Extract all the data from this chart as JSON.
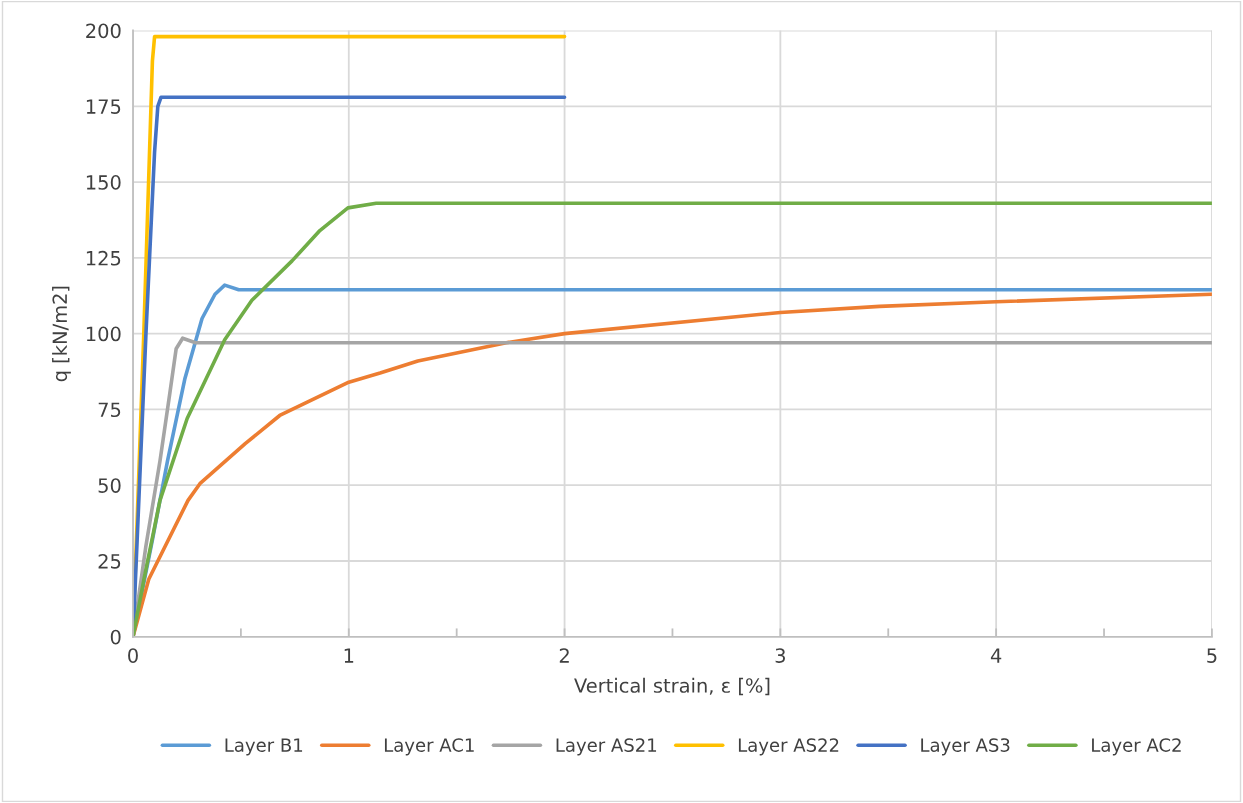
{
  "chart_data": {
    "type": "line",
    "xlabel": "Vertical strain, ε [%]",
    "ylabel": "q [kN/m2]",
    "xlim": [
      0,
      5
    ],
    "ylim": [
      0,
      200
    ],
    "xticks": [
      0,
      {
        "value": 0.5,
        "label": null
      },
      1,
      {
        "value": 1.5,
        "label": null
      },
      2,
      {
        "value": 2.5,
        "label": null
      },
      3,
      {
        "value": 3.5,
        "label": null
      },
      4,
      {
        "value": 4.5,
        "label": null
      },
      5
    ],
    "yticks": [
      0,
      25,
      50,
      75,
      100,
      125,
      150,
      175,
      200
    ],
    "grid": true,
    "legend": "bottom",
    "marker": "none",
    "line_style": "solid",
    "series": [
      {
        "name": "Layer B1",
        "color": "#5b9bd5",
        "x": [
          0,
          0.09,
          0.16,
          0.24,
          0.32,
          0.38,
          0.425,
          0.49,
          5
        ],
        "values": [
          0,
          32,
          58,
          85,
          105,
          113,
          116,
          114.5,
          114.5
        ]
      },
      {
        "name": "Layer AC1",
        "color": "#ed7d31",
        "x": [
          0,
          0.073,
          0.255,
          0.31,
          0.52,
          0.68,
          1.0,
          1.145,
          1.32,
          1.73,
          2.0,
          3.0,
          3.46,
          4.0,
          5.0
        ],
        "values": [
          0,
          19,
          45,
          50.5,
          63.7,
          73,
          84,
          87,
          91,
          97,
          100,
          107,
          109,
          110.5,
          113
        ]
      },
      {
        "name": "Layer AS21",
        "color": "#a5a5a5",
        "x": [
          0,
          0.06,
          0.125,
          0.17,
          0.2,
          0.23,
          0.29,
          5
        ],
        "values": [
          0,
          30,
          58,
          80,
          95,
          98.5,
          97,
          97
        ]
      },
      {
        "name": "Layer AS22",
        "color": "#ffc000",
        "x": [
          0,
          0.05,
          0.09,
          0.1,
          2
        ],
        "values": [
          0,
          100,
          190,
          198,
          198
        ]
      },
      {
        "name": "Layer AS3",
        "color": "#4472c4",
        "x": [
          0,
          0.06,
          0.1,
          0.115,
          0.13,
          2
        ],
        "values": [
          0,
          100,
          160,
          175,
          178,
          178
        ]
      },
      {
        "name": "Layer AC2",
        "color": "#70ad47",
        "x": [
          0,
          0.051,
          0.125,
          0.251,
          0.425,
          0.551,
          0.737,
          0.866,
          0.996,
          1.127,
          5
        ],
        "values": [
          0,
          19,
          45,
          72,
          98,
          111,
          124,
          134,
          141.5,
          143,
          143
        ]
      }
    ]
  }
}
